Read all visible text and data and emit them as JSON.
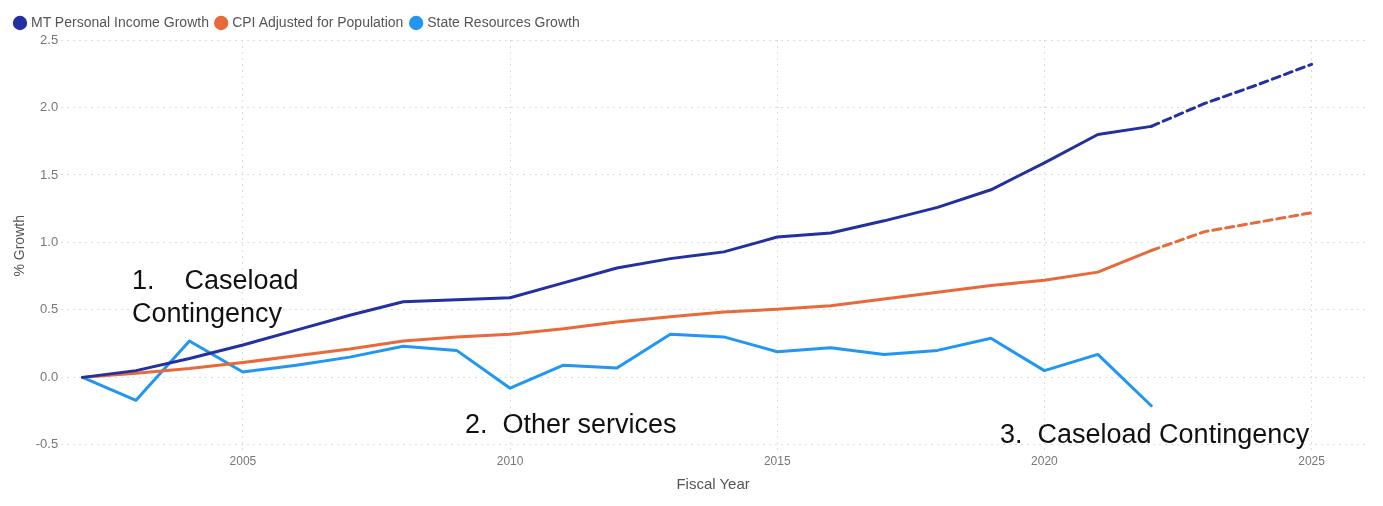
{
  "chart_data": {
    "type": "line",
    "xlabel": "Fiscal Year",
    "ylabel": "% Growth",
    "x": [
      2002,
      2003,
      2004,
      2005,
      2006,
      2007,
      2008,
      2009,
      2010,
      2011,
      2012,
      2013,
      2014,
      2015,
      2016,
      2017,
      2018,
      2019,
      2020,
      2021,
      2022,
      2023,
      2024,
      2025
    ],
    "series": [
      {
        "name": "MT Personal Income Growth",
        "color": "#2330a0",
        "line_style": "solid",
        "values": [
          0,
          0.05,
          0.14,
          0.24,
          0.35,
          0.46,
          0.56,
          0.575,
          0.59,
          0.7,
          0.81,
          0.88,
          0.93,
          1.04,
          1.07,
          1.16,
          1.26,
          1.39,
          1.59,
          1.8,
          1.86,
          null,
          null,
          null
        ]
      },
      {
        "color": "#2330a0",
        "line_style": "dashed",
        "values": [
          null,
          null,
          null,
          null,
          null,
          null,
          null,
          null,
          null,
          null,
          null,
          null,
          null,
          null,
          null,
          null,
          null,
          null,
          null,
          null,
          1.86,
          2.03,
          2.17,
          2.32
        ]
      },
      {
        "name": "CPI Adjusted for Population",
        "color": "#e8693a",
        "line_style": "solid",
        "values": [
          0,
          0.03,
          0.065,
          0.11,
          0.16,
          0.21,
          0.27,
          0.3,
          0.32,
          0.36,
          0.41,
          0.45,
          0.485,
          0.505,
          0.53,
          0.58,
          0.63,
          0.68,
          0.72,
          0.78,
          0.94,
          null,
          null,
          null
        ]
      },
      {
        "color": "#e8693a",
        "line_style": "dashed",
        "values": [
          null,
          null,
          null,
          null,
          null,
          null,
          null,
          null,
          null,
          null,
          null,
          null,
          null,
          null,
          null,
          null,
          null,
          null,
          null,
          null,
          0.94,
          1.08,
          1.15,
          1.22
        ]
      },
      {
        "name": "State Resources Growth",
        "color": "#2196f3",
        "line_style": "solid",
        "values": [
          0,
          -0.17,
          0.27,
          0.04,
          0.09,
          0.15,
          0.23,
          0.2,
          -0.08,
          0.09,
          0.07,
          0.32,
          0.3,
          0.19,
          0.22,
          0.17,
          0.2,
          0.29,
          0.05,
          0.17,
          -0.21,
          null,
          null,
          null
        ]
      }
    ],
    "xlim": [
      2001.6,
      2026
    ],
    "xticks": [
      2005,
      2010,
      2015,
      2020,
      2025
    ],
    "ylim": [
      -0.55,
      2.5
    ],
    "yticks": [
      {
        "value": -0.5,
        "label": "-0.5"
      },
      {
        "value": 0,
        "label": "0.0"
      },
      {
        "value": 0.5,
        "label": "0.5"
      },
      {
        "value": 1,
        "label": "1.0"
      },
      {
        "value": 1.5,
        "label": "1.5"
      },
      {
        "value": 2,
        "label": "2.0"
      },
      {
        "value": 2.5,
        "label": "2.5"
      }
    ],
    "grid": true,
    "legend": "top left",
    "marker": "none",
    "annotations": [
      "1.    Caseload Contingency",
      "2.  Other services",
      "3.  Caseload Contingency"
    ]
  }
}
